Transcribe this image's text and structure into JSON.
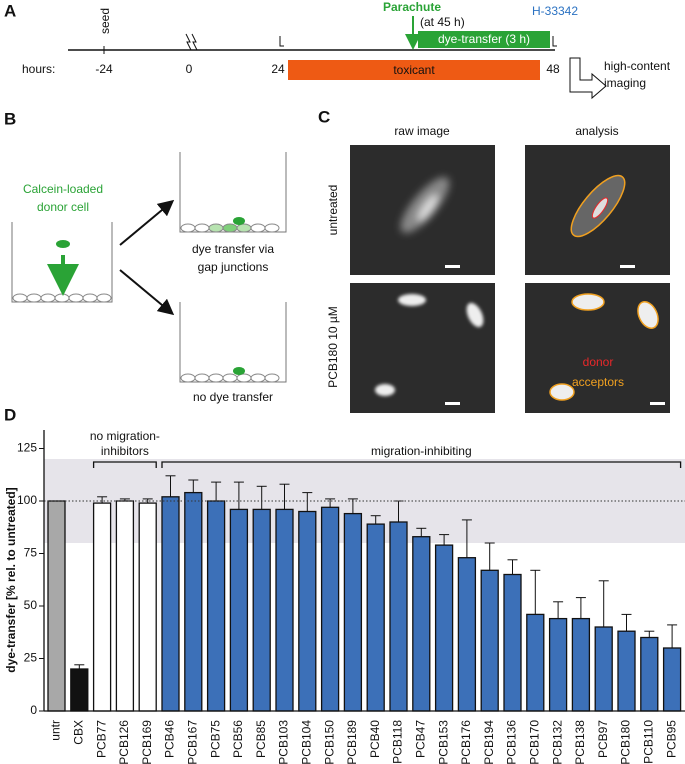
{
  "panel_a": {
    "letter": "A",
    "seed": "seed",
    "hours_label": "hours:",
    "ticks": [
      "-24",
      "0",
      "24",
      "48"
    ],
    "parachute": "Parachute",
    "parachute_time": "(at 45 h)",
    "dye_transfer": "dye-transfer (3 h)",
    "stain": "H-33342",
    "toxicant": "toxicant",
    "readout": [
      "high-content",
      "imaging"
    ]
  },
  "panel_b": {
    "letter": "B",
    "donor": [
      "Calcein-loaded",
      "donor cell"
    ],
    "outcome_transfer": [
      "dye transfer via",
      "gap junctions"
    ],
    "outcome_none": "no dye transfer"
  },
  "panel_c": {
    "letter": "C",
    "columns": [
      "raw image",
      "analysis"
    ],
    "rows": [
      "untreated",
      "PCB180 10 µM"
    ],
    "legend": [
      {
        "text": "donor",
        "color": "#e8282a"
      },
      {
        "text": "acceptors",
        "color": "#f0a020"
      }
    ]
  },
  "chart_data": {
    "letter": "D",
    "type": "bar",
    "ylabel": "dye-transfer [% rel. to untreated]",
    "categories": [
      "untr",
      "CBX",
      "PCB77",
      "PCB126",
      "PCB169",
      "PCB46",
      "PCB167",
      "PCB75",
      "PCB56",
      "PCB85",
      "PCB103",
      "PCB104",
      "PCB150",
      "PCB189",
      "PCB40",
      "PCB118",
      "PCB47",
      "PCB153",
      "PCB176",
      "PCB194",
      "PCB136",
      "PCB170",
      "PCB132",
      "PCB138",
      "PCB97",
      "PCB180",
      "PCB110",
      "PCB95"
    ],
    "values": [
      100,
      20,
      99,
      100,
      99,
      102,
      104,
      100,
      96,
      96,
      96,
      95,
      97,
      94,
      89,
      90,
      83,
      79,
      73,
      67,
      65,
      46,
      44,
      44,
      40,
      38,
      35,
      30
    ],
    "errors": [
      0,
      2,
      3,
      1,
      2,
      10,
      6,
      9,
      13,
      11,
      12,
      9,
      4,
      7,
      4,
      10,
      4,
      5,
      18,
      13,
      7,
      21,
      8,
      10,
      22,
      8,
      3,
      11
    ],
    "colors": [
      "#a8a8a8",
      "#111111",
      "#ffffff",
      "#ffffff",
      "#ffffff",
      "#3c70b8",
      "#3c70b8",
      "#3c70b8",
      "#3c70b8",
      "#3c70b8",
      "#3c70b8",
      "#3c70b8",
      "#3c70b8",
      "#3c70b8",
      "#3c70b8",
      "#3c70b8",
      "#3c70b8",
      "#3c70b8",
      "#3c70b8",
      "#3c70b8",
      "#3c70b8",
      "#3c70b8",
      "#3c70b8",
      "#3c70b8",
      "#3c70b8",
      "#3c70b8",
      "#3c70b8",
      "#3c70b8"
    ],
    "ylim": [
      0,
      125
    ],
    "yticks": [
      0,
      25,
      50,
      75,
      100,
      125
    ],
    "reference_line": 100,
    "band": [
      80,
      120
    ],
    "groups": [
      {
        "label": [
          "no migration-",
          "inhibitors"
        ]
      },
      {
        "label": "migration-inhibiting"
      }
    ]
  }
}
